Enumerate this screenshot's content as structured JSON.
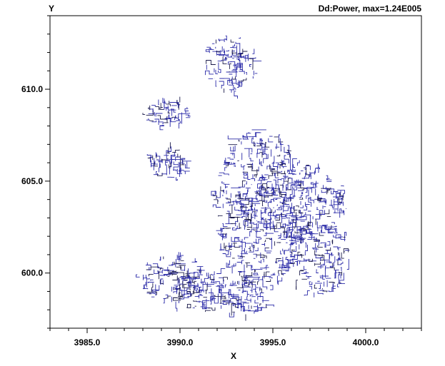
{
  "chart_data": {
    "type": "scatter",
    "title": "Dd:Power, max=1.24E005",
    "xlabel": "X",
    "ylabel": "Y",
    "xlim": [
      3983.0,
      4003.0
    ],
    "ylim": [
      597.0,
      614.0
    ],
    "x_ticks": [
      {
        "value": 3985.0,
        "label": "3985.0"
      },
      {
        "value": 3990.0,
        "label": "3990.0"
      },
      {
        "value": 3995.0,
        "label": "3995.0"
      },
      {
        "value": 4000.0,
        "label": "4000.0"
      }
    ],
    "y_ticks": [
      {
        "value": 600.0,
        "label": "600.0"
      },
      {
        "value": 605.0,
        "label": "605.0"
      },
      {
        "value": 610.0,
        "label": "610.0"
      }
    ],
    "grid": false,
    "colors": {
      "network": "#2a2aa8",
      "network_dark": "#1a1a4a",
      "axis": "#000000"
    },
    "series": [
      {
        "clusters": [
          {
            "cx": 3992.8,
            "cy": 611.4,
            "rx": 1.4,
            "ry": 1.6
          },
          {
            "cx": 3989.3,
            "cy": 608.7,
            "rx": 1.3,
            "ry": 0.7
          },
          {
            "cx": 3989.4,
            "cy": 606.0,
            "rx": 1.0,
            "ry": 0.9
          },
          {
            "cx": 3994.3,
            "cy": 603.5,
            "rx": 2.4,
            "ry": 4.4
          },
          {
            "cx": 3996.0,
            "cy": 603.8,
            "rx": 3.0,
            "ry": 2.2
          },
          {
            "cx": 3997.6,
            "cy": 600.8,
            "rx": 1.6,
            "ry": 2.0
          },
          {
            "cx": 3989.5,
            "cy": 599.7,
            "rx": 1.7,
            "ry": 1.3
          },
          {
            "cx": 3991.3,
            "cy": 599.0,
            "rx": 1.5,
            "ry": 1.2
          },
          {
            "cx": 3993.5,
            "cy": 598.8,
            "rx": 1.3,
            "ry": 1.1
          }
        ]
      }
    ]
  }
}
